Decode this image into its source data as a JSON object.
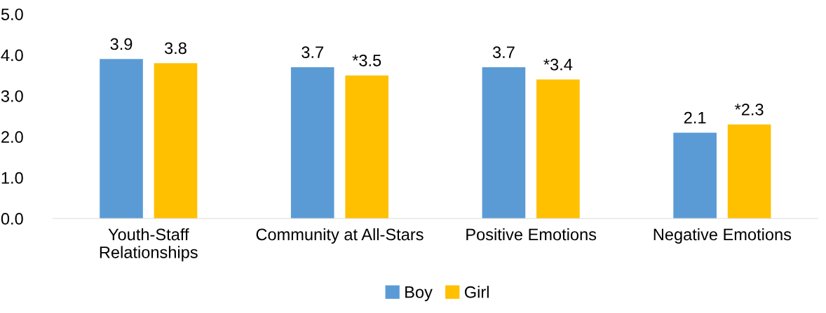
{
  "chart_data": {
    "type": "bar",
    "categories": [
      "Youth-Staff\nRelationships",
      "Community at All-Stars",
      "Positive Emotions",
      "Negative Emotions"
    ],
    "series": [
      {
        "name": "Boy",
        "color": "#5b9bd5",
        "values": [
          3.9,
          3.7,
          3.7,
          2.1
        ],
        "value_labels": [
          "3.9",
          "3.7",
          "3.7",
          "2.1"
        ]
      },
      {
        "name": "Girl",
        "color": "#ffc000",
        "values": [
          3.8,
          3.5,
          3.4,
          2.3
        ],
        "value_labels": [
          "3.8",
          "*3.5",
          "*3.4",
          "*2.3"
        ]
      }
    ],
    "ylim": [
      0,
      5
    ],
    "yticks": [
      {
        "value": 0,
        "label": "0.0"
      },
      {
        "value": 1,
        "label": "1.0"
      },
      {
        "value": 2,
        "label": "2.0"
      },
      {
        "value": 3,
        "label": "3.0"
      },
      {
        "value": 4,
        "label": "4.0"
      },
      {
        "value": 5,
        "label": "5.0"
      }
    ],
    "grid": false,
    "legend": "bottom"
  }
}
